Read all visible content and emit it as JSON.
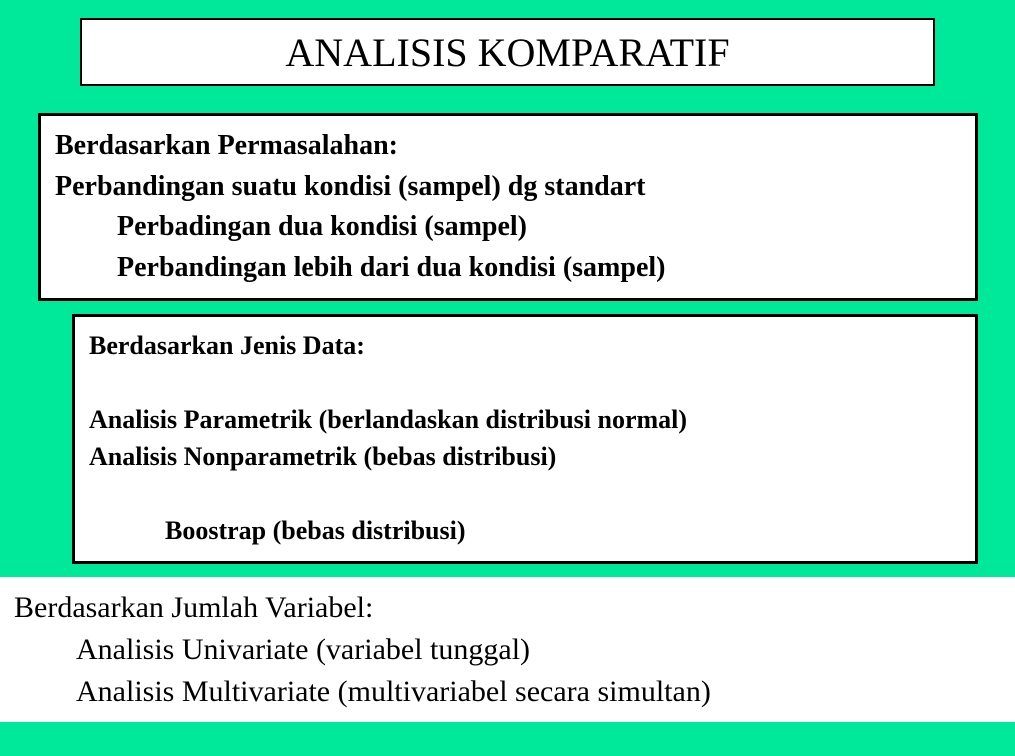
{
  "colors": {
    "background": "#00e89a",
    "box_bg": "#ffffff",
    "border": "#000000",
    "text": "#000000"
  },
  "title": {
    "text": "ANALISIS KOMPARATIF",
    "fontsize": 40,
    "font_weight": "normal",
    "border_width": 2
  },
  "box1": {
    "border_width": 3,
    "fontsize": 28,
    "font_weight": "bold",
    "heading": "Berdasarkan Permasalahan:",
    "line1": "Perbandingan suatu kondisi (sampel) dg standart",
    "line2": "Perbadingan dua kondisi (sampel)",
    "line3": "Perbandingan lebih dari dua kondisi (sampel)"
  },
  "box2": {
    "border_width": 3,
    "fontsize": 26,
    "font_weight": "bold",
    "heading": "Berdasarkan Jenis Data:",
    "line1": "Analisis Parametrik (berlandaskan  distribusi normal)",
    "line2": "Analisis Nonparametrik (bebas distribusi)",
    "line3": "Boostrap (bebas distribusi)"
  },
  "box3": {
    "border_width": 0,
    "fontsize": 30,
    "font_weight": "normal",
    "heading": "Berdasarkan Jumlah Variabel:",
    "line1": "Analisis Univariate (variabel tunggal)",
    "line2": "Analisis Multivariate (multivariabel secara simultan)"
  }
}
